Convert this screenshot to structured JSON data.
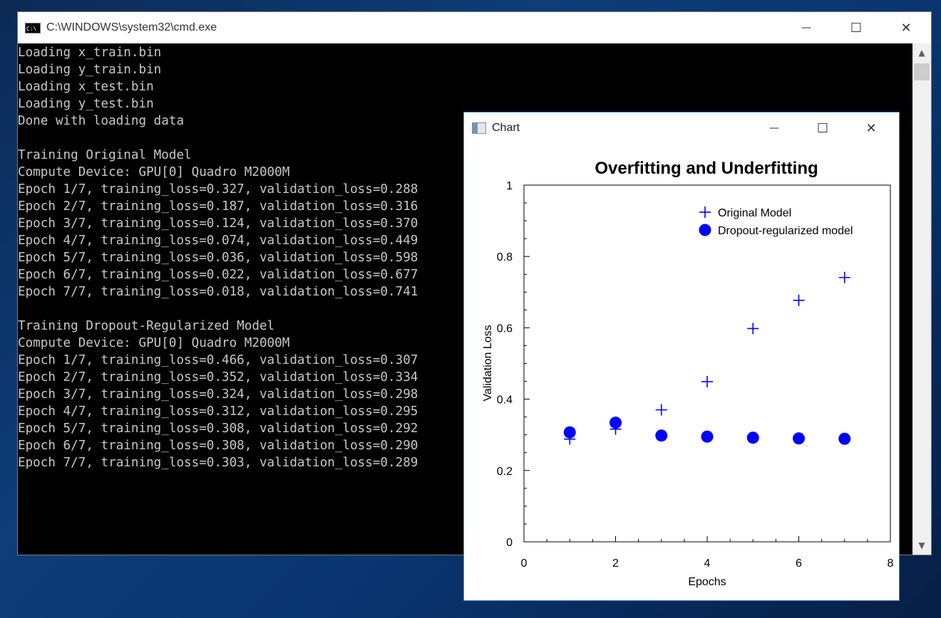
{
  "cmd": {
    "title": "C:\\WINDOWS\\system32\\cmd.exe",
    "icon_label": "C:\\",
    "lines": [
      "Loading x_train.bin",
      "Loading y_train.bin",
      "Loading x_test.bin",
      "Loading y_test.bin",
      "Done with loading data",
      "",
      "Training Original Model",
      "Compute Device: GPU[0] Quadro M2000M",
      "Epoch 1/7, training_loss=0.327, validation_loss=0.288",
      "Epoch 2/7, training_loss=0.187, validation_loss=0.316",
      "Epoch 3/7, training_loss=0.124, validation_loss=0.370",
      "Epoch 4/7, training_loss=0.074, validation_loss=0.449",
      "Epoch 5/7, training_loss=0.036, validation_loss=0.598",
      "Epoch 6/7, training_loss=0.022, validation_loss=0.677",
      "Epoch 7/7, training_loss=0.018, validation_loss=0.741",
      "",
      "Training Dropout-Regularized Model",
      "Compute Device: GPU[0] Quadro M2000M",
      "Epoch 1/7, training_loss=0.466, validation_loss=0.307",
      "Epoch 2/7, training_loss=0.352, validation_loss=0.334",
      "Epoch 3/7, training_loss=0.324, validation_loss=0.298",
      "Epoch 4/7, training_loss=0.312, validation_loss=0.295",
      "Epoch 5/7, training_loss=0.308, validation_loss=0.292",
      "Epoch 6/7, training_loss=0.308, validation_loss=0.290",
      "Epoch 7/7, training_loss=0.303, validation_loss=0.289"
    ],
    "controls": {
      "minimize": "—",
      "maximize": "☐",
      "close": "✕"
    },
    "scroll_up": "▲",
    "scroll_down": "▼"
  },
  "chart_window": {
    "title": "Chart",
    "controls": {
      "minimize": "—",
      "maximize": "☐",
      "close": "✕"
    }
  },
  "chart_data": {
    "type": "scatter",
    "title": "Overfitting and Underfitting",
    "xlabel": "Epochs",
    "ylabel": "Validation Loss",
    "xlim": [
      0,
      8
    ],
    "ylim": [
      0,
      1
    ],
    "xticks": [
      "0",
      "2",
      "4",
      "6",
      "8"
    ],
    "yticks": [
      "0",
      "0.2",
      "0.4",
      "0.6",
      "0.8",
      "1"
    ],
    "grid": false,
    "legend_position": "top-right",
    "colors": {
      "series": "#0000ff"
    },
    "series": [
      {
        "name": "Original Model",
        "marker": "plus",
        "x": [
          1,
          2,
          3,
          4,
          5,
          6,
          7
        ],
        "y": [
          0.288,
          0.316,
          0.37,
          0.449,
          0.598,
          0.677,
          0.741
        ]
      },
      {
        "name": "Dropout-regularized model",
        "marker": "circle",
        "x": [
          1,
          2,
          3,
          4,
          5,
          6,
          7
        ],
        "y": [
          0.307,
          0.334,
          0.298,
          0.295,
          0.292,
          0.29,
          0.289
        ]
      }
    ]
  }
}
